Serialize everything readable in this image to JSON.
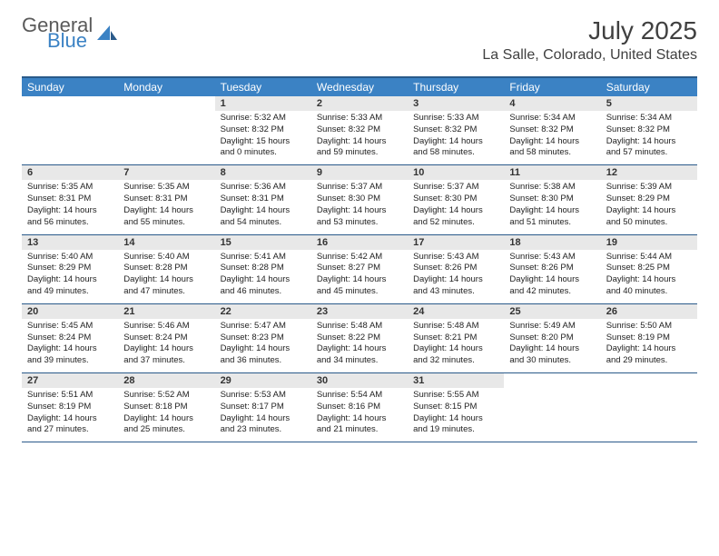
{
  "logo": {
    "text1": "General",
    "text2": "Blue"
  },
  "title": "July 2025",
  "location": "La Salle, Colorado, United States",
  "colors": {
    "header_bg": "#3b82c4",
    "border": "#2a5a8a",
    "daynum_bg": "#e8e8e8",
    "text": "#222222",
    "title_text": "#404040"
  },
  "dayNames": [
    "Sunday",
    "Monday",
    "Tuesday",
    "Wednesday",
    "Thursday",
    "Friday",
    "Saturday"
  ],
  "weeks": [
    [
      null,
      null,
      {
        "n": "1",
        "sr": "5:32 AM",
        "ss": "8:32 PM",
        "dl": "15 hours and 0 minutes."
      },
      {
        "n": "2",
        "sr": "5:33 AM",
        "ss": "8:32 PM",
        "dl": "14 hours and 59 minutes."
      },
      {
        "n": "3",
        "sr": "5:33 AM",
        "ss": "8:32 PM",
        "dl": "14 hours and 58 minutes."
      },
      {
        "n": "4",
        "sr": "5:34 AM",
        "ss": "8:32 PM",
        "dl": "14 hours and 58 minutes."
      },
      {
        "n": "5",
        "sr": "5:34 AM",
        "ss": "8:32 PM",
        "dl": "14 hours and 57 minutes."
      }
    ],
    [
      {
        "n": "6",
        "sr": "5:35 AM",
        "ss": "8:31 PM",
        "dl": "14 hours and 56 minutes."
      },
      {
        "n": "7",
        "sr": "5:35 AM",
        "ss": "8:31 PM",
        "dl": "14 hours and 55 minutes."
      },
      {
        "n": "8",
        "sr": "5:36 AM",
        "ss": "8:31 PM",
        "dl": "14 hours and 54 minutes."
      },
      {
        "n": "9",
        "sr": "5:37 AM",
        "ss": "8:30 PM",
        "dl": "14 hours and 53 minutes."
      },
      {
        "n": "10",
        "sr": "5:37 AM",
        "ss": "8:30 PM",
        "dl": "14 hours and 52 minutes."
      },
      {
        "n": "11",
        "sr": "5:38 AM",
        "ss": "8:30 PM",
        "dl": "14 hours and 51 minutes."
      },
      {
        "n": "12",
        "sr": "5:39 AM",
        "ss": "8:29 PM",
        "dl": "14 hours and 50 minutes."
      }
    ],
    [
      {
        "n": "13",
        "sr": "5:40 AM",
        "ss": "8:29 PM",
        "dl": "14 hours and 49 minutes."
      },
      {
        "n": "14",
        "sr": "5:40 AM",
        "ss": "8:28 PM",
        "dl": "14 hours and 47 minutes."
      },
      {
        "n": "15",
        "sr": "5:41 AM",
        "ss": "8:28 PM",
        "dl": "14 hours and 46 minutes."
      },
      {
        "n": "16",
        "sr": "5:42 AM",
        "ss": "8:27 PM",
        "dl": "14 hours and 45 minutes."
      },
      {
        "n": "17",
        "sr": "5:43 AM",
        "ss": "8:26 PM",
        "dl": "14 hours and 43 minutes."
      },
      {
        "n": "18",
        "sr": "5:43 AM",
        "ss": "8:26 PM",
        "dl": "14 hours and 42 minutes."
      },
      {
        "n": "19",
        "sr": "5:44 AM",
        "ss": "8:25 PM",
        "dl": "14 hours and 40 minutes."
      }
    ],
    [
      {
        "n": "20",
        "sr": "5:45 AM",
        "ss": "8:24 PM",
        "dl": "14 hours and 39 minutes."
      },
      {
        "n": "21",
        "sr": "5:46 AM",
        "ss": "8:24 PM",
        "dl": "14 hours and 37 minutes."
      },
      {
        "n": "22",
        "sr": "5:47 AM",
        "ss": "8:23 PM",
        "dl": "14 hours and 36 minutes."
      },
      {
        "n": "23",
        "sr": "5:48 AM",
        "ss": "8:22 PM",
        "dl": "14 hours and 34 minutes."
      },
      {
        "n": "24",
        "sr": "5:48 AM",
        "ss": "8:21 PM",
        "dl": "14 hours and 32 minutes."
      },
      {
        "n": "25",
        "sr": "5:49 AM",
        "ss": "8:20 PM",
        "dl": "14 hours and 30 minutes."
      },
      {
        "n": "26",
        "sr": "5:50 AM",
        "ss": "8:19 PM",
        "dl": "14 hours and 29 minutes."
      }
    ],
    [
      {
        "n": "27",
        "sr": "5:51 AM",
        "ss": "8:19 PM",
        "dl": "14 hours and 27 minutes."
      },
      {
        "n": "28",
        "sr": "5:52 AM",
        "ss": "8:18 PM",
        "dl": "14 hours and 25 minutes."
      },
      {
        "n": "29",
        "sr": "5:53 AM",
        "ss": "8:17 PM",
        "dl": "14 hours and 23 minutes."
      },
      {
        "n": "30",
        "sr": "5:54 AM",
        "ss": "8:16 PM",
        "dl": "14 hours and 21 minutes."
      },
      {
        "n": "31",
        "sr": "5:55 AM",
        "ss": "8:15 PM",
        "dl": "14 hours and 19 minutes."
      },
      null,
      null
    ]
  ],
  "labels": {
    "sunrise": "Sunrise:",
    "sunset": "Sunset:",
    "daylight": "Daylight:"
  }
}
